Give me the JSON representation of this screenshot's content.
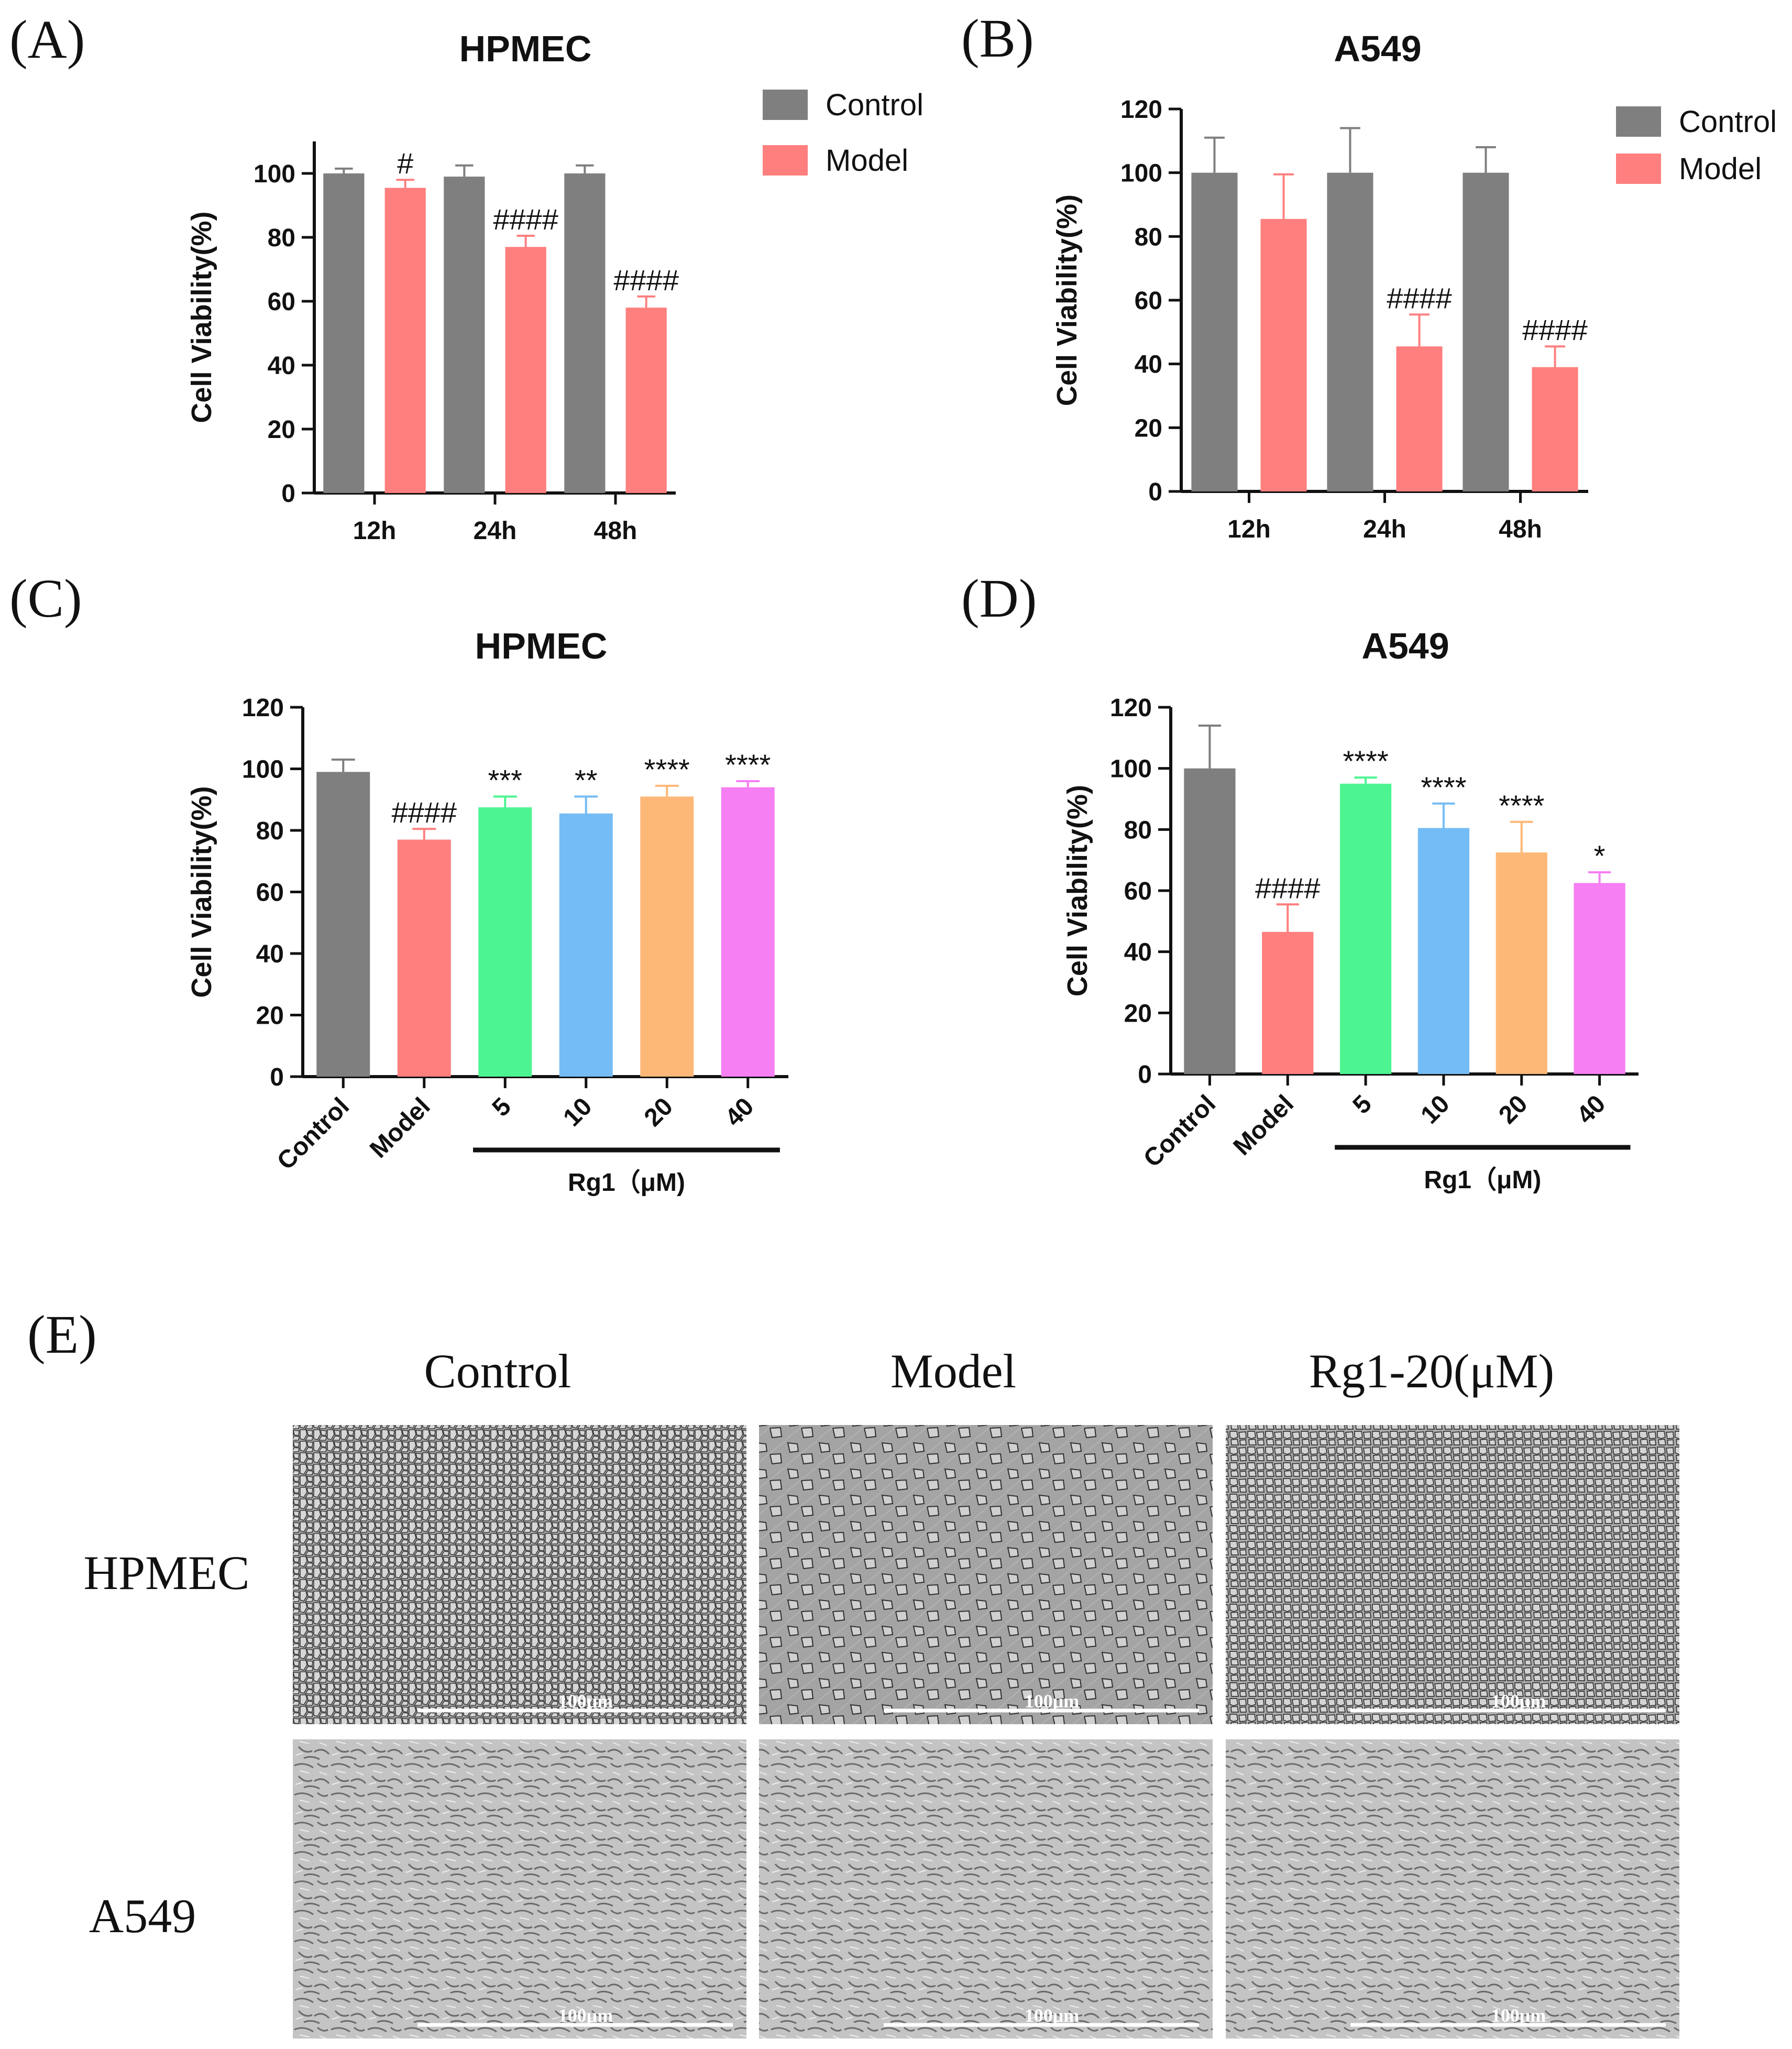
{
  "colors": {
    "control": "#7f7f7f",
    "model": "#ff7f7f",
    "rg1_5": "#4cf592",
    "rg1_10": "#74bcf5",
    "rg1_20": "#fdb877",
    "rg1_40": "#f57ff3",
    "axis": "#111111"
  },
  "chart_data": [
    {
      "id": "A",
      "letter": "(A)",
      "type": "bar",
      "title": "HPMEC",
      "ylabel": "Cell Viability(%)",
      "xlabel": "",
      "ylim": [
        0,
        110
      ],
      "yticks": [
        0,
        20,
        40,
        60,
        80,
        100
      ],
      "categories": [
        "12h",
        "24h",
        "48h"
      ],
      "series": [
        {
          "name": "Control",
          "values": [
            100,
            99,
            100
          ],
          "errors": [
            1.5,
            3.5,
            2.5
          ]
        },
        {
          "name": "Model",
          "values": [
            95.5,
            77,
            58
          ],
          "errors": [
            2.5,
            3.5,
            3.5
          ]
        }
      ],
      "annotations": [
        {
          "series": 1,
          "index": 0,
          "text": "#"
        },
        {
          "series": 1,
          "index": 1,
          "text": "####"
        },
        {
          "series": 1,
          "index": 2,
          "text": "####"
        }
      ],
      "legend": "top-right"
    },
    {
      "id": "B",
      "letter": "(B)",
      "type": "bar",
      "title": "A549",
      "ylabel": "Cell Viability(%)",
      "xlabel": "",
      "ylim": [
        0,
        120
      ],
      "yticks": [
        0,
        20,
        40,
        60,
        80,
        100,
        120
      ],
      "categories": [
        "12h",
        "24h",
        "48h"
      ],
      "series": [
        {
          "name": "Control",
          "values": [
            100,
            100,
            100
          ],
          "errors": [
            11,
            14,
            8
          ]
        },
        {
          "name": "Model",
          "values": [
            85.5,
            45.5,
            39
          ],
          "errors": [
            14,
            10,
            6.5
          ]
        }
      ],
      "annotations": [
        {
          "series": 1,
          "index": 1,
          "text": "####"
        },
        {
          "series": 1,
          "index": 2,
          "text": "####"
        }
      ],
      "legend": "top-right"
    },
    {
      "id": "C",
      "letter": "(C)",
      "type": "bar",
      "title": "HPMEC",
      "ylabel": "Cell Viability(%)",
      "xlabel": "Rg1（μM)",
      "ylim": [
        0,
        120
      ],
      "yticks": [
        0,
        20,
        40,
        60,
        80,
        100,
        120
      ],
      "categories": [
        "Control",
        "Model",
        "5",
        "10",
        "20",
        "40"
      ],
      "values": [
        99,
        77,
        87.5,
        85.5,
        91,
        94
      ],
      "errors": [
        4,
        3.5,
        3.5,
        5.5,
        3.5,
        2
      ],
      "annotations": [
        "",
        "####",
        "***",
        "**",
        "****",
        "****"
      ],
      "group_bracket": {
        "from": 2,
        "to": 5
      }
    },
    {
      "id": "D",
      "letter": "(D)",
      "type": "bar",
      "title": "A549",
      "ylabel": "Cell Viability(%)",
      "xlabel": "Rg1（μM)",
      "ylim": [
        0,
        120
      ],
      "yticks": [
        0,
        20,
        40,
        60,
        80,
        100,
        120
      ],
      "categories": [
        "Control",
        "Model",
        "5",
        "10",
        "20",
        "40"
      ],
      "values": [
        100,
        46.5,
        95,
        80.5,
        72.5,
        62.5
      ],
      "errors": [
        14,
        9,
        2,
        8,
        10,
        3.5
      ],
      "annotations": [
        "",
        "####",
        "****",
        "****",
        "****",
        "*"
      ],
      "group_bracket": {
        "from": 2,
        "to": 5
      }
    }
  ],
  "panel_e": {
    "letter": "(E)",
    "columns": [
      "Control",
      "Model",
      "Rg1-20(μM)"
    ],
    "rows": [
      "HPMEC",
      "A549"
    ],
    "scale_bar": "100μm"
  }
}
